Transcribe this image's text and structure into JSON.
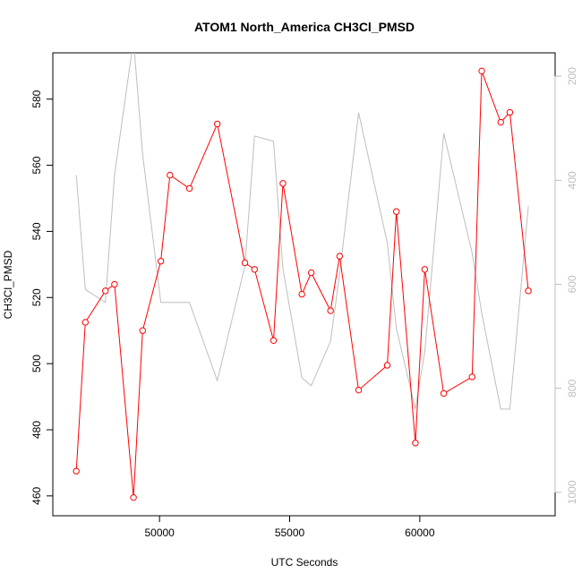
{
  "chart_data": {
    "type": "line",
    "title": "ATOM1 North_America CH3Cl_PMSD",
    "xlabel": "UTC Seconds",
    "ylabel": "CH3Cl_PMSD",
    "xlim": [
      45900,
      65200
    ],
    "ylim": [
      454,
      594
    ],
    "y2lim": [
      1045,
      155
    ],
    "x_ticks": [
      50000,
      55000,
      60000
    ],
    "x_tick_labels": [
      "50000",
      "55000",
      "60000"
    ],
    "y_ticks": [
      460,
      480,
      500,
      520,
      540,
      560,
      580
    ],
    "y_tick_labels": [
      "460",
      "480",
      "500",
      "520",
      "540",
      "560",
      "580"
    ],
    "y2_ticks": [
      200,
      400,
      600,
      800,
      1000
    ],
    "y2_tick_labels": [
      "200",
      "400",
      "600",
      "800",
      "1000"
    ],
    "grid": false,
    "colors": {
      "primary": "#ff0000",
      "secondary": "#bebebe",
      "axis": "#000000"
    },
    "series": [
      {
        "axis": "left",
        "style": "line-with-open-circles",
        "color": "#ff0000",
        "x": [
          46800,
          47150,
          47920,
          48270,
          49000,
          49350,
          50050,
          50400,
          51150,
          52220,
          53280,
          53650,
          54380,
          54740,
          55470,
          55830,
          56570,
          56920,
          57650,
          58750,
          59100,
          59830,
          60190,
          60920,
          62010,
          62380,
          63110,
          63460,
          64170
        ],
        "values": [
          467.5,
          512.5,
          522,
          524,
          459.5,
          510,
          531,
          557,
          553,
          572.5,
          530.5,
          528.5,
          507,
          554.5,
          521,
          527.5,
          516,
          532.5,
          492,
          499.5,
          546,
          476,
          528.5,
          491,
          496,
          588.5,
          573,
          576,
          522
        ]
      },
      {
        "axis": "right",
        "style": "line",
        "color": "#bebebe",
        "x": [
          46800,
          47150,
          47920,
          48270,
          49000,
          49350,
          50050,
          50400,
          51150,
          52220,
          53280,
          53650,
          54380,
          54740,
          55470,
          55830,
          56570,
          56920,
          57650,
          58750,
          59100,
          59830,
          60190,
          60920,
          62010,
          62380,
          63110,
          63460,
          64170
        ],
        "values": [
          390,
          610,
          635,
          390,
          130,
          350,
          635,
          635,
          635,
          785,
          565,
          315,
          325,
          570,
          780,
          795,
          710,
          580,
          270,
          520,
          685,
          840,
          730,
          310,
          540,
          655,
          840,
          840,
          450
        ]
      }
    ]
  }
}
